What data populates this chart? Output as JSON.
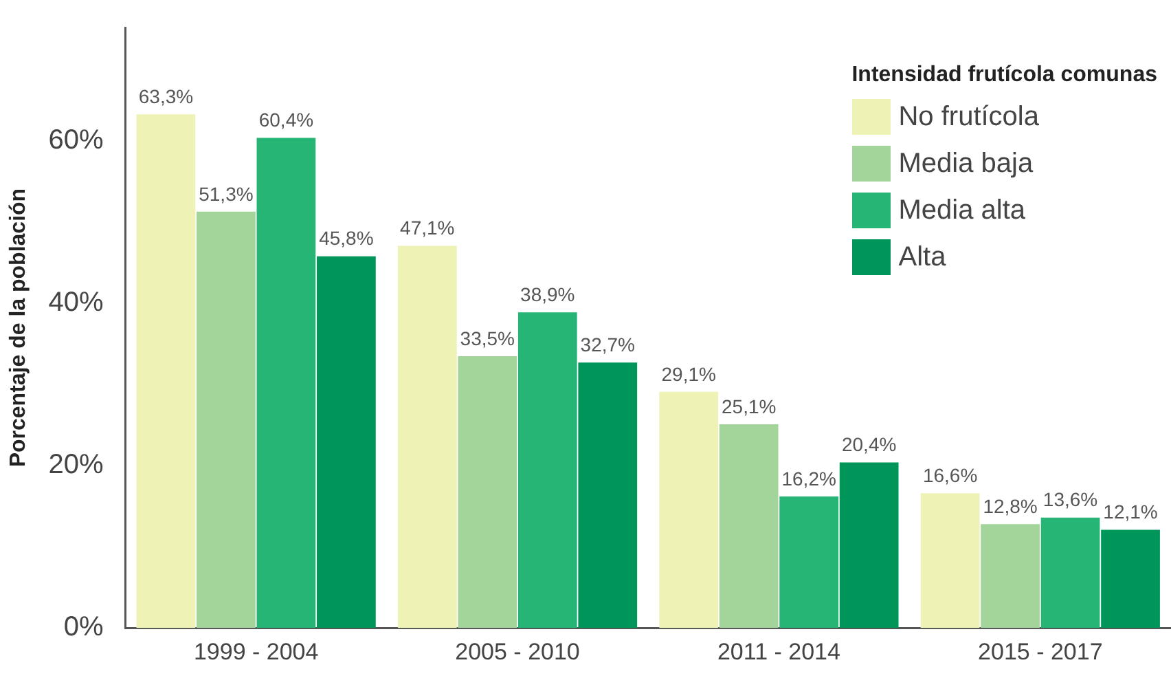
{
  "chart_data": {
    "type": "bar",
    "ylabel": "Porcentaje de la población",
    "legend_title": "Intensidad frutícola comunas",
    "legend": "top right",
    "grid": false,
    "categories": [
      "1999 - 2004",
      "2005 - 2010",
      "2011 - 2014",
      "2015 - 2017"
    ],
    "ylim": [
      0,
      74
    ],
    "yticks": [
      {
        "value": 0,
        "label": "0%"
      },
      {
        "value": 20,
        "label": "20%"
      },
      {
        "value": 40,
        "label": "40%"
      },
      {
        "value": 60,
        "label": "60%"
      }
    ],
    "series": [
      {
        "name": "No frutícola",
        "color": "#eef2b4",
        "values": [
          63.3,
          47.1,
          29.1,
          16.6
        ],
        "value_labels": [
          "63,3%",
          "47,1%",
          "29,1%",
          "16,6%"
        ]
      },
      {
        "name": "Media baja",
        "color": "#a3d49a",
        "values": [
          51.3,
          33.5,
          25.1,
          12.8
        ],
        "value_labels": [
          "51,3%",
          "33,5%",
          "25,1%",
          "12,8%"
        ]
      },
      {
        "name": "Media alta",
        "color": "#26b574",
        "values": [
          60.4,
          38.9,
          16.2,
          13.6
        ],
        "value_labels": [
          "60,4%",
          "38,9%",
          "16,2%",
          "13,6%"
        ]
      },
      {
        "name": "Alta",
        "color": "#00965a",
        "values": [
          45.8,
          32.7,
          20.4,
          12.1
        ],
        "value_labels": [
          "45,8%",
          "32,7%",
          "20,4%",
          "12,1%"
        ]
      }
    ]
  }
}
